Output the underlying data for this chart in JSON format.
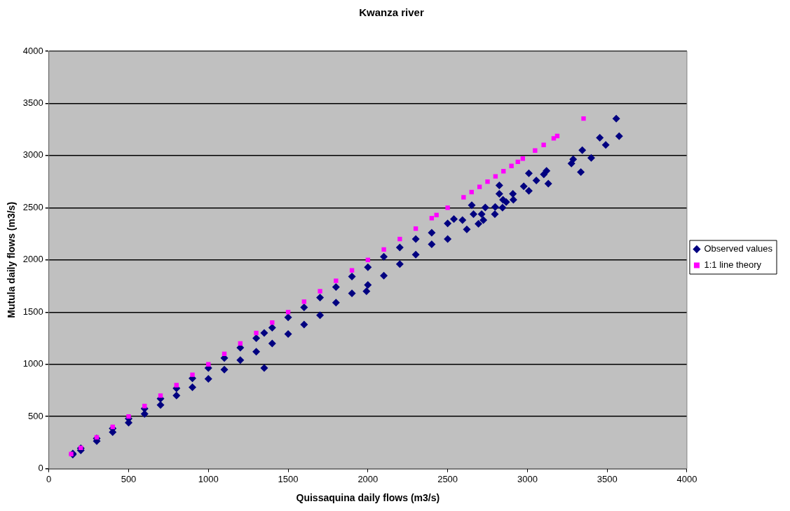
{
  "chart_data": {
    "type": "scatter",
    "title": "Kwanza river",
    "xlabel": "Quissaquina daily flows (m3/s)",
    "ylabel": "Mutula daily flows (m3/s)",
    "xlim": [
      0,
      4000
    ],
    "xticks": [
      0,
      500,
      1000,
      1500,
      2000,
      2500,
      3000,
      3500,
      4000
    ],
    "ylim": [
      0,
      4000
    ],
    "yticks": [
      0,
      500,
      1000,
      1500,
      2000,
      2500,
      3000,
      3500,
      4000
    ],
    "grid": "y",
    "legend": "right",
    "series": [
      {
        "name": "Observed values",
        "color": "#000080",
        "marker": "diamond",
        "x": [
          150,
          150,
          200,
          200,
          300,
          300,
          400,
          400,
          500,
          500,
          600,
          600,
          700,
          700,
          800,
          800,
          900,
          900,
          1000,
          1000,
          1100,
          1100,
          1200,
          1200,
          1300,
          1300,
          1350,
          1350,
          1400,
          1400,
          1500,
          1500,
          1600,
          1600,
          1700,
          1700,
          1800,
          1800,
          1900,
          1900,
          2000,
          2000,
          2100,
          2100,
          2200,
          2200,
          2300,
          2300,
          2400,
          2400,
          2500,
          2500,
          1991,
          2539,
          2593,
          2620,
          2651,
          2662,
          2693,
          2713,
          2724,
          2736,
          2796,
          2798,
          2824,
          2824,
          2844,
          2847,
          2867,
          2909,
          2912,
          2977,
          3009,
          3009,
          3056,
          3103,
          3120,
          3131,
          3276,
          3287,
          3335,
          3344,
          3400,
          3454,
          3491,
          3557,
          3575
        ],
        "values": [
          145,
          135,
          195,
          175,
          290,
          265,
          385,
          350,
          480,
          440,
          575,
          525,
          670,
          610,
          770,
          700,
          865,
          780,
          965,
          860,
          1060,
          950,
          1160,
          1040,
          1250,
          1120,
          1300,
          965,
          1350,
          1200,
          1450,
          1290,
          1545,
          1380,
          1640,
          1470,
          1740,
          1590,
          1840,
          1680,
          1930,
          1760,
          2030,
          1850,
          2120,
          1960,
          2200,
          2050,
          2260,
          2150,
          2350,
          2200,
          1700,
          2392,
          2381,
          2293,
          2524,
          2438,
          2346,
          2438,
          2381,
          2503,
          2438,
          2507,
          2714,
          2634,
          2500,
          2576,
          2554,
          2634,
          2576,
          2706,
          2830,
          2662,
          2761,
          2819,
          2853,
          2731,
          2923,
          2964,
          2841,
          3052,
          2978,
          3170,
          3102,
          3354,
          3185
        ]
      },
      {
        "name": "1:1 line theory",
        "color": "#ff00ff",
        "marker": "square",
        "x": [
          140,
          200,
          300,
          400,
          500,
          600,
          700,
          800,
          900,
          1000,
          1100,
          1200,
          1300,
          1400,
          1500,
          1600,
          1700,
          1800,
          1900,
          2000,
          2100,
          2200,
          2300,
          2400,
          2430,
          2500,
          2600,
          2650,
          2700,
          2750,
          2800,
          2850,
          2900,
          2940,
          2971,
          3048,
          3102,
          3165,
          3187,
          3352
        ],
        "values": [
          140,
          200,
          300,
          400,
          500,
          600,
          700,
          800,
          900,
          1000,
          1100,
          1200,
          1300,
          1400,
          1500,
          1600,
          1700,
          1800,
          1900,
          2000,
          2100,
          2200,
          2300,
          2400,
          2430,
          2500,
          2600,
          2650,
          2700,
          2750,
          2800,
          2850,
          2900,
          2940,
          2971,
          3048,
          3102,
          3165,
          3187,
          3354
        ]
      }
    ]
  }
}
